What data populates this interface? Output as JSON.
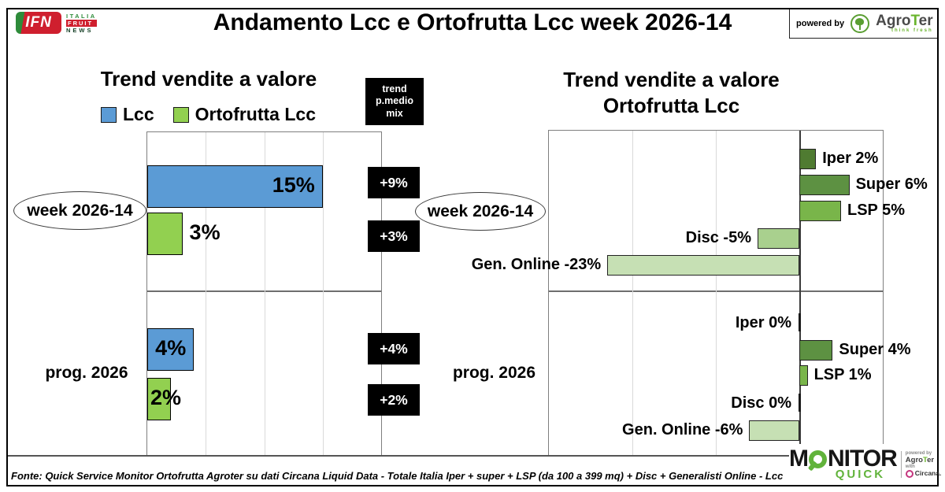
{
  "header": {
    "ifn_logo": {
      "abbr": "IFN",
      "stack": [
        "ITALIA",
        "FRUIT",
        "NEWS"
      ]
    },
    "title": "Andamento Lcc e Ortofrutta Lcc week 2026-14",
    "powered_by": "powered by",
    "agroter_name_agro": "Agro",
    "agroter_name_t": "T",
    "agroter_name_er": "er",
    "agroter_tagline": "think fresh"
  },
  "left_panel": {
    "title": "Trend vendite a valore",
    "trend_box": [
      "trend",
      "p.medio",
      "mix"
    ],
    "row_label_week": "week 2026-14",
    "row_label_prog": "prog. 2026",
    "trend_values": [
      "+9%",
      "+3%",
      "+4%",
      "+2%"
    ]
  },
  "right_panel": {
    "title_line1": "Trend vendite a valore",
    "title_line2": "Ortofrutta Lcc",
    "row_label_week": "week 2026-14",
    "row_label_prog": "prog. 2026"
  },
  "chart_data": [
    {
      "type": "bar",
      "orientation": "horizontal",
      "title": "Trend vendite a valore",
      "categories": [
        "week 2026-14",
        "prog. 2026"
      ],
      "series": [
        {
          "name": "Lcc",
          "color": "#5b9bd5",
          "values": [
            15,
            4
          ]
        },
        {
          "name": "Ortofrutta Lcc",
          "color": "#92d050",
          "values": [
            3,
            2
          ]
        }
      ],
      "value_suffix": "%",
      "xlim": [
        0,
        20
      ],
      "gridlines": [
        5,
        10,
        15
      ],
      "grid": true,
      "legend_position": "top",
      "side_annotations": {
        "title": "trend p.medio mix",
        "values": [
          "+9%",
          "+3%",
          "+4%",
          "+2%"
        ]
      }
    },
    {
      "type": "bar",
      "orientation": "horizontal",
      "title": "Trend vendite a valore Ortofrutta Lcc",
      "xlim": [
        -30,
        10
      ],
      "gridlines": [
        -20,
        -10,
        0,
        10
      ],
      "grid": true,
      "value_suffix": "%",
      "groups": [
        {
          "category": "week 2026-14",
          "bars": [
            {
              "label": "Iper",
              "value": 2,
              "color": "#4f7b31"
            },
            {
              "label": "Super",
              "value": 6,
              "color": "#5d9142"
            },
            {
              "label": "LSP",
              "value": 5,
              "color": "#79b54a"
            },
            {
              "label": "Disc",
              "value": -5,
              "color": "#a9d08e"
            },
            {
              "label": "Gen. Online",
              "value": -23,
              "color": "#c6e0b4"
            }
          ]
        },
        {
          "category": "prog. 2026",
          "bars": [
            {
              "label": "Iper",
              "value": 0,
              "color": "#4f7b31"
            },
            {
              "label": "Super",
              "value": 4,
              "color": "#5d9142"
            },
            {
              "label": "LSP",
              "value": 1,
              "color": "#79b54a"
            },
            {
              "label": "Disc",
              "value": 0,
              "color": "#a9d08e"
            },
            {
              "label": "Gen. Online",
              "value": -6,
              "color": "#c6e0b4"
            }
          ]
        }
      ]
    }
  ],
  "footer": {
    "source": "Fonte: Quick Service Monitor Ortofrutta Agroter su dati Circana Liquid Data - Totale Italia Iper + super + LSP (da 100 a 399 mq) + Disc + Generalisti Online - Lcc"
  },
  "monitor_logo": {
    "m": "M",
    "nitor": "NITOR",
    "quick": "QUICK",
    "powered_by": "powered by",
    "agroter": "AgroTer",
    "with": "with",
    "circana": "Circana."
  }
}
